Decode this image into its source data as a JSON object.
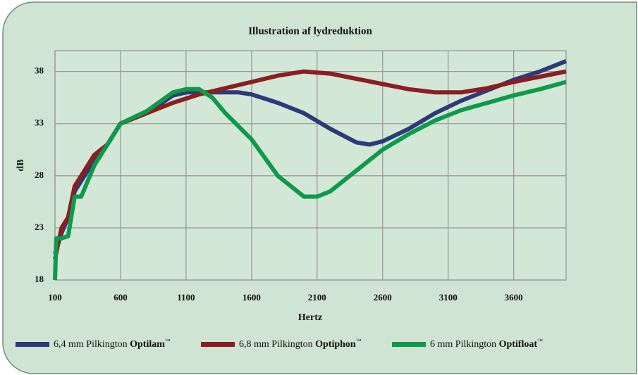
{
  "chart_data": {
    "type": "line",
    "title": "Illustration af lydreduktion",
    "xlabel": "Hertz",
    "ylabel": "dB",
    "xlim": [
      100,
      4000
    ],
    "xticks": [
      100,
      600,
      1100,
      1600,
      2100,
      2600,
      3100,
      3600
    ],
    "ylim": [
      18,
      40
    ],
    "yticks": [
      18,
      23,
      28,
      33,
      38
    ],
    "grid": true,
    "series": [
      {
        "name": "6,4 mm Pilkington Optilam™",
        "color": "#2d3a7a",
        "x": [
          100,
          150,
          200,
          250,
          300,
          400,
          500,
          600,
          800,
          1000,
          1100,
          1300,
          1500,
          1600,
          1800,
          2000,
          2200,
          2400,
          2500,
          2600,
          2800,
          3000,
          3200,
          3400,
          3600,
          3800,
          4000
        ],
        "values": [
          20.5,
          22.5,
          24,
          26.5,
          27.5,
          29.5,
          31,
          33,
          34,
          35.7,
          36,
          36,
          36,
          35.8,
          35,
          34,
          32.5,
          31.2,
          31,
          31.3,
          32.5,
          34,
          35.2,
          36.2,
          37.2,
          38,
          39
        ]
      },
      {
        "name": "6,8 mm Pilkington Optiphon™",
        "color": "#8c1d20",
        "x": [
          100,
          150,
          200,
          250,
          300,
          400,
          500,
          600,
          800,
          1000,
          1200,
          1400,
          1600,
          1800,
          2000,
          2200,
          2400,
          2600,
          2800,
          3000,
          3200,
          3400,
          3600,
          3800,
          4000
        ],
        "values": [
          20,
          23,
          24,
          27,
          28,
          30,
          31,
          33,
          34,
          35,
          35.8,
          36.4,
          37,
          37.6,
          38,
          37.8,
          37.3,
          36.8,
          36.3,
          36,
          36,
          36.4,
          37,
          37.5,
          38
        ]
      },
      {
        "name": "6 mm Pilkington Optifloat™",
        "color": "#0f9a4a",
        "x": [
          100,
          110,
          150,
          200,
          250,
          300,
          400,
          500,
          600,
          800,
          1000,
          1100,
          1200,
          1300,
          1400,
          1600,
          1800,
          2000,
          2100,
          2200,
          2400,
          2600,
          2800,
          3000,
          3200,
          3400,
          3600,
          3800,
          4000
        ],
        "values": [
          18,
          22,
          22,
          22.2,
          26,
          26,
          29,
          31,
          33,
          34.2,
          36,
          36.3,
          36.3,
          35.5,
          34,
          31.5,
          28,
          26,
          26,
          26.5,
          28.5,
          30.5,
          32,
          33.3,
          34.3,
          35,
          35.7,
          36.3,
          37
        ]
      }
    ]
  }
}
